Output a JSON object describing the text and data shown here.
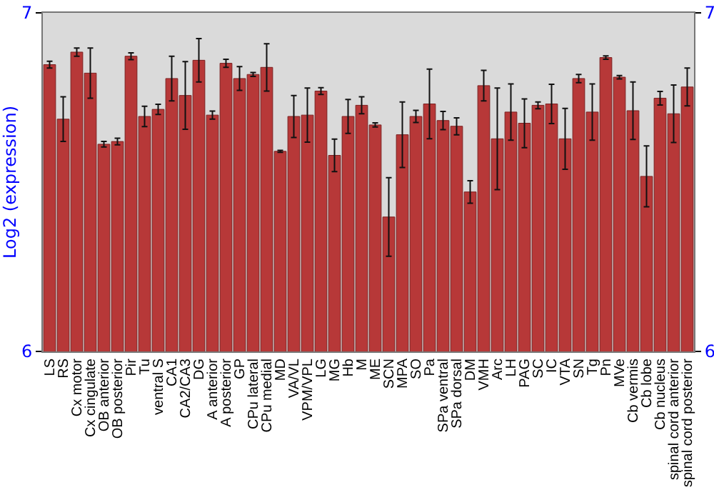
{
  "chart_data": {
    "type": "bar",
    "ylabel": "Log2 (expression)",
    "categories": [
      "LS",
      "RS",
      "Cx motor",
      "Cx cingulate",
      "OB anterior",
      "OB posterior",
      "Pir",
      "Tu",
      "ventral S",
      "CA1",
      "CA2/CA3",
      "DG",
      "A anterior",
      "A posterior",
      "GP",
      "CPu lateral",
      "CPu medial",
      "MD",
      "VA/VL",
      "VPM/VPL",
      "LG",
      "MG",
      "Hb",
      "M",
      "ME",
      "SCN",
      "MPA",
      "SO",
      "Pa",
      "SPa ventral",
      "SPa dorsal",
      "DM",
      "VMH",
      "Arc",
      "LH",
      "PAG",
      "SC",
      "IC",
      "VTA",
      "SN",
      "Tg",
      "Pn",
      "MVe",
      "Cb vermis",
      "Cb lobe",
      "Cb nucleus",
      "spinal cord anterior",
      "spinal cord posterior"
    ],
    "values": [
      6.847,
      6.686,
      6.884,
      6.822,
      6.612,
      6.62,
      6.872,
      6.694,
      6.715,
      6.806,
      6.756,
      6.86,
      6.698,
      6.851,
      6.806,
      6.818,
      6.839,
      6.591,
      6.694,
      6.698,
      6.769,
      6.579,
      6.694,
      6.727,
      6.669,
      6.397,
      6.64,
      6.694,
      6.731,
      6.682,
      6.665,
      6.471,
      6.785,
      6.628,
      6.707,
      6.674,
      6.727,
      6.731,
      6.628,
      6.806,
      6.707,
      6.868,
      6.81,
      6.711,
      6.517,
      6.748,
      6.702,
      6.781
    ],
    "errors": [
      0.01,
      0.066,
      0.012,
      0.074,
      0.008,
      0.01,
      0.01,
      0.03,
      0.015,
      0.066,
      0.1,
      0.064,
      0.012,
      0.012,
      0.035,
      0.006,
      0.07,
      0.003,
      0.062,
      0.08,
      0.01,
      0.048,
      0.05,
      0.025,
      0.006,
      0.116,
      0.097,
      0.018,
      0.103,
      0.027,
      0.025,
      0.033,
      0.045,
      0.15,
      0.083,
      0.072,
      0.01,
      0.058,
      0.09,
      0.012,
      0.083,
      0.005,
      0.005,
      0.085,
      0.09,
      0.02,
      0.085,
      0.056
    ],
    "color": "#b73838",
    "ylim": [
      6,
      7
    ],
    "yticks": [
      6,
      7
    ],
    "y2lim": [
      6,
      7
    ],
    "y2ticks": [
      6,
      7
    ]
  }
}
